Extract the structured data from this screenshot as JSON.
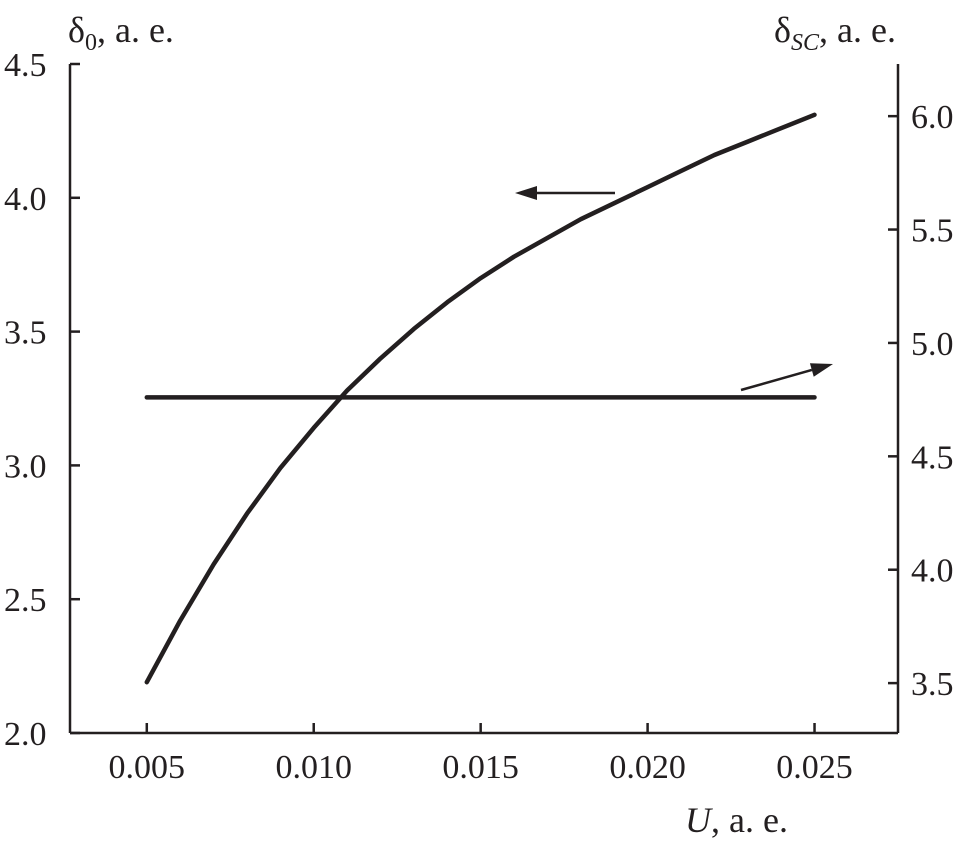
{
  "chart_data": {
    "type": "line",
    "x_axis": {
      "label_var": "U",
      "label_rest": ", a. e.",
      "range": [
        0.0027,
        0.0275
      ],
      "ticks": [
        "0.005",
        "0.010",
        "0.015",
        "0.020",
        "0.025"
      ]
    },
    "y_left": {
      "label_main": "δ",
      "label_sub": "0",
      "label_rest": ", a. e.",
      "range": [
        2.0,
        4.5
      ],
      "ticks": [
        "2.0",
        "2.5",
        "3.0",
        "3.5",
        "4.0",
        "4.5"
      ]
    },
    "y_right": {
      "label_main": "δ",
      "label_sub": "SC",
      "label_rest": ", a. e.",
      "range": [
        3.28,
        6.23
      ],
      "ticks": [
        "3.5",
        "4.0",
        "4.5",
        "5.0",
        "5.5",
        "6.0"
      ]
    },
    "series": [
      {
        "axis": "left",
        "x": [
          0.005,
          0.006,
          0.007,
          0.008,
          0.009,
          0.01,
          0.011,
          0.012,
          0.013,
          0.014,
          0.015,
          0.016,
          0.017,
          0.018,
          0.019,
          0.02,
          0.021,
          0.022,
          0.023,
          0.024,
          0.025
        ],
        "y": [
          2.19,
          2.42,
          2.63,
          2.82,
          2.99,
          3.14,
          3.28,
          3.4,
          3.51,
          3.61,
          3.7,
          3.78,
          3.85,
          3.92,
          3.98,
          4.04,
          4.1,
          4.16,
          4.21,
          4.26,
          4.31
        ]
      },
      {
        "axis": "right",
        "x": [
          0.005,
          0.025
        ],
        "y": [
          4.76,
          4.76
        ]
      }
    ]
  }
}
